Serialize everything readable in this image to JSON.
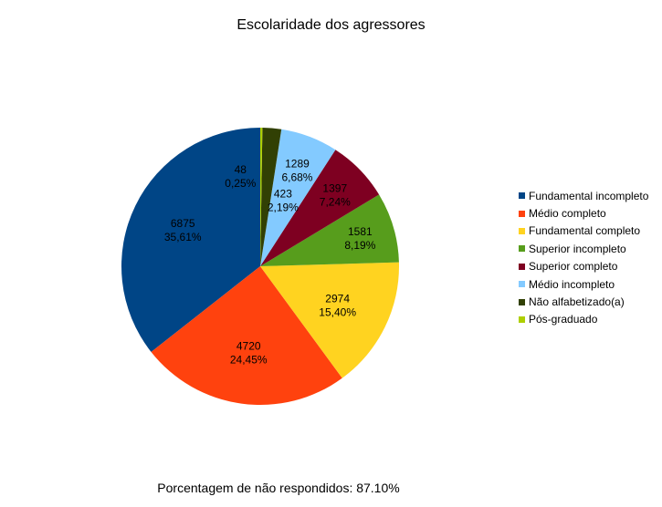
{
  "chart_data": {
    "type": "pie",
    "title": "Escolaridade dos agressores",
    "footnote": "Porcentagem de não respondidos: 87.10%",
    "legend_position": "right",
    "slices": [
      {
        "name": "Fundamental incompleto",
        "value": 6875,
        "percent": "35,61%",
        "color": "#004586"
      },
      {
        "name": "Médio completo",
        "value": 4720,
        "percent": "24,45%",
        "color": "#ff420e"
      },
      {
        "name": "Fundamental completo",
        "value": 2974,
        "percent": "15,40%",
        "color": "#ffd320"
      },
      {
        "name": "Superior incompleto",
        "value": 1581,
        "percent": "8,19%",
        "color": "#579d1c"
      },
      {
        "name": "Superior completo",
        "value": 1397,
        "percent": "7,24%",
        "color": "#7e0021"
      },
      {
        "name": "Médio incompleto",
        "value": 1289,
        "percent": "6,68%",
        "color": "#83caff"
      },
      {
        "name": "Não alfabetizado(a)",
        "value": 423,
        "percent": "2,19%",
        "color": "#314004"
      },
      {
        "name": "Pós-graduado",
        "value": 48,
        "percent": "0,25%",
        "color": "#aecf00"
      }
    ]
  }
}
